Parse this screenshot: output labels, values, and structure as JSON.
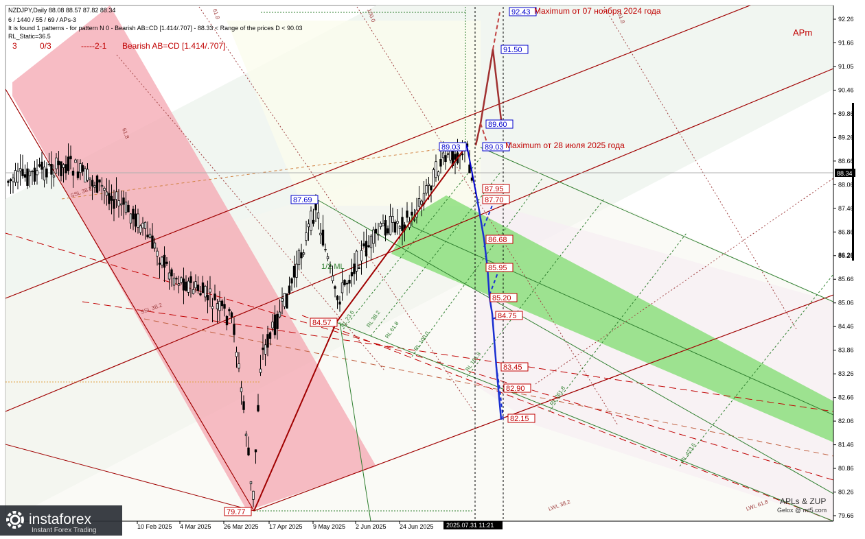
{
  "header": {
    "symbol_line": "NZDJPY,Daily  88.08 88.57 87.82 88.34",
    "info_line": "6 / 1440 / 55 / 69 / APs-3",
    "pattern_line": "It is found 1 patterns  -  for pattern N 0 - Bearish AB=CD [1.414/.707] - 88.33 < Range of the prices D < 90.03",
    "rl_static": "RL_Static=36.5",
    "counter_a": "3",
    "counter_b": "0/3",
    "counter_c": "-----2-1",
    "pattern_name": "Bearish AB=CD [1.414/.707]",
    "apm": "APm"
  },
  "annotations": {
    "max_2024": "Maximum от 07 ноября 2024 года",
    "max_2025": "Maximum от 28 июля 2025 года",
    "signature_1": "APLs & ZUP",
    "signature_2": "Gelox @ mt5.com",
    "half_ml": "1/2 ML",
    "logo_name": "instaforex",
    "logo_sub": "Instant Forex Trading",
    "time_cursor": "2025.07.31 11:21"
  },
  "colors": {
    "red": "#c00000",
    "blue": "#0000cc",
    "green_band": "#7fdc6f",
    "pink_band": "#f4a6b0",
    "dark_red_line": "#a00000"
  },
  "chart_data": {
    "type": "candlestick",
    "title": "NZDJPY,Daily",
    "ylim": [
      79.66,
      92.43
    ],
    "y_ticks": [
      "92.26",
      "91.66",
      "91.05",
      "90.46",
      "89.86",
      "89.26",
      "88.66",
      "88.06",
      "87.46",
      "86.86",
      "86.26",
      "85.66",
      "85.06",
      "84.46",
      "83.86",
      "83.26",
      "82.66",
      "82.06",
      "81.46",
      "80.86",
      "80.26",
      "79.66"
    ],
    "current_price": "88.34",
    "right_scale_extra": "86.26",
    "x_ticks": [
      "10 Feb 2025",
      "4 Mar 2025",
      "26 Mar 2025",
      "17 Apr 2025",
      "9 May 2025",
      "2 Jun 2025",
      "24 Jun 2025"
    ],
    "price_labels": [
      {
        "text": "92.43",
        "color": "blue"
      },
      {
        "text": "91.50",
        "color": "blue"
      },
      {
        "text": "89.60",
        "color": "blue"
      },
      {
        "text": "89.03",
        "color": "blue"
      },
      {
        "text": "89.03",
        "color": "blue"
      },
      {
        "text": "87.69",
        "color": "blue"
      },
      {
        "text": "87.95",
        "color": "red"
      },
      {
        "text": "87.70",
        "color": "red"
      },
      {
        "text": "86.68",
        "color": "red"
      },
      {
        "text": "85.95",
        "color": "red"
      },
      {
        "text": "85.20",
        "color": "red"
      },
      {
        "text": "84.75",
        "color": "red"
      },
      {
        "text": "84.57",
        "color": "red"
      },
      {
        "text": "83.45",
        "color": "red"
      },
      {
        "text": "82.90",
        "color": "red"
      },
      {
        "text": "82.15",
        "color": "red"
      },
      {
        "text": "79.77",
        "color": "red"
      }
    ],
    "fib_labels": [
      "SSL 38.2",
      "SSL 38.2",
      "1/2 ML",
      "RL 23.6",
      "RL 38.2",
      "RL 61.8",
      "RL 100.0",
      "RL 161.8",
      "RL 261.8",
      "RL 423.6",
      "LWL 38.2",
      "LWL 61.8",
      "100.0",
      "61.8",
      "61.8",
      "61.8"
    ]
  }
}
